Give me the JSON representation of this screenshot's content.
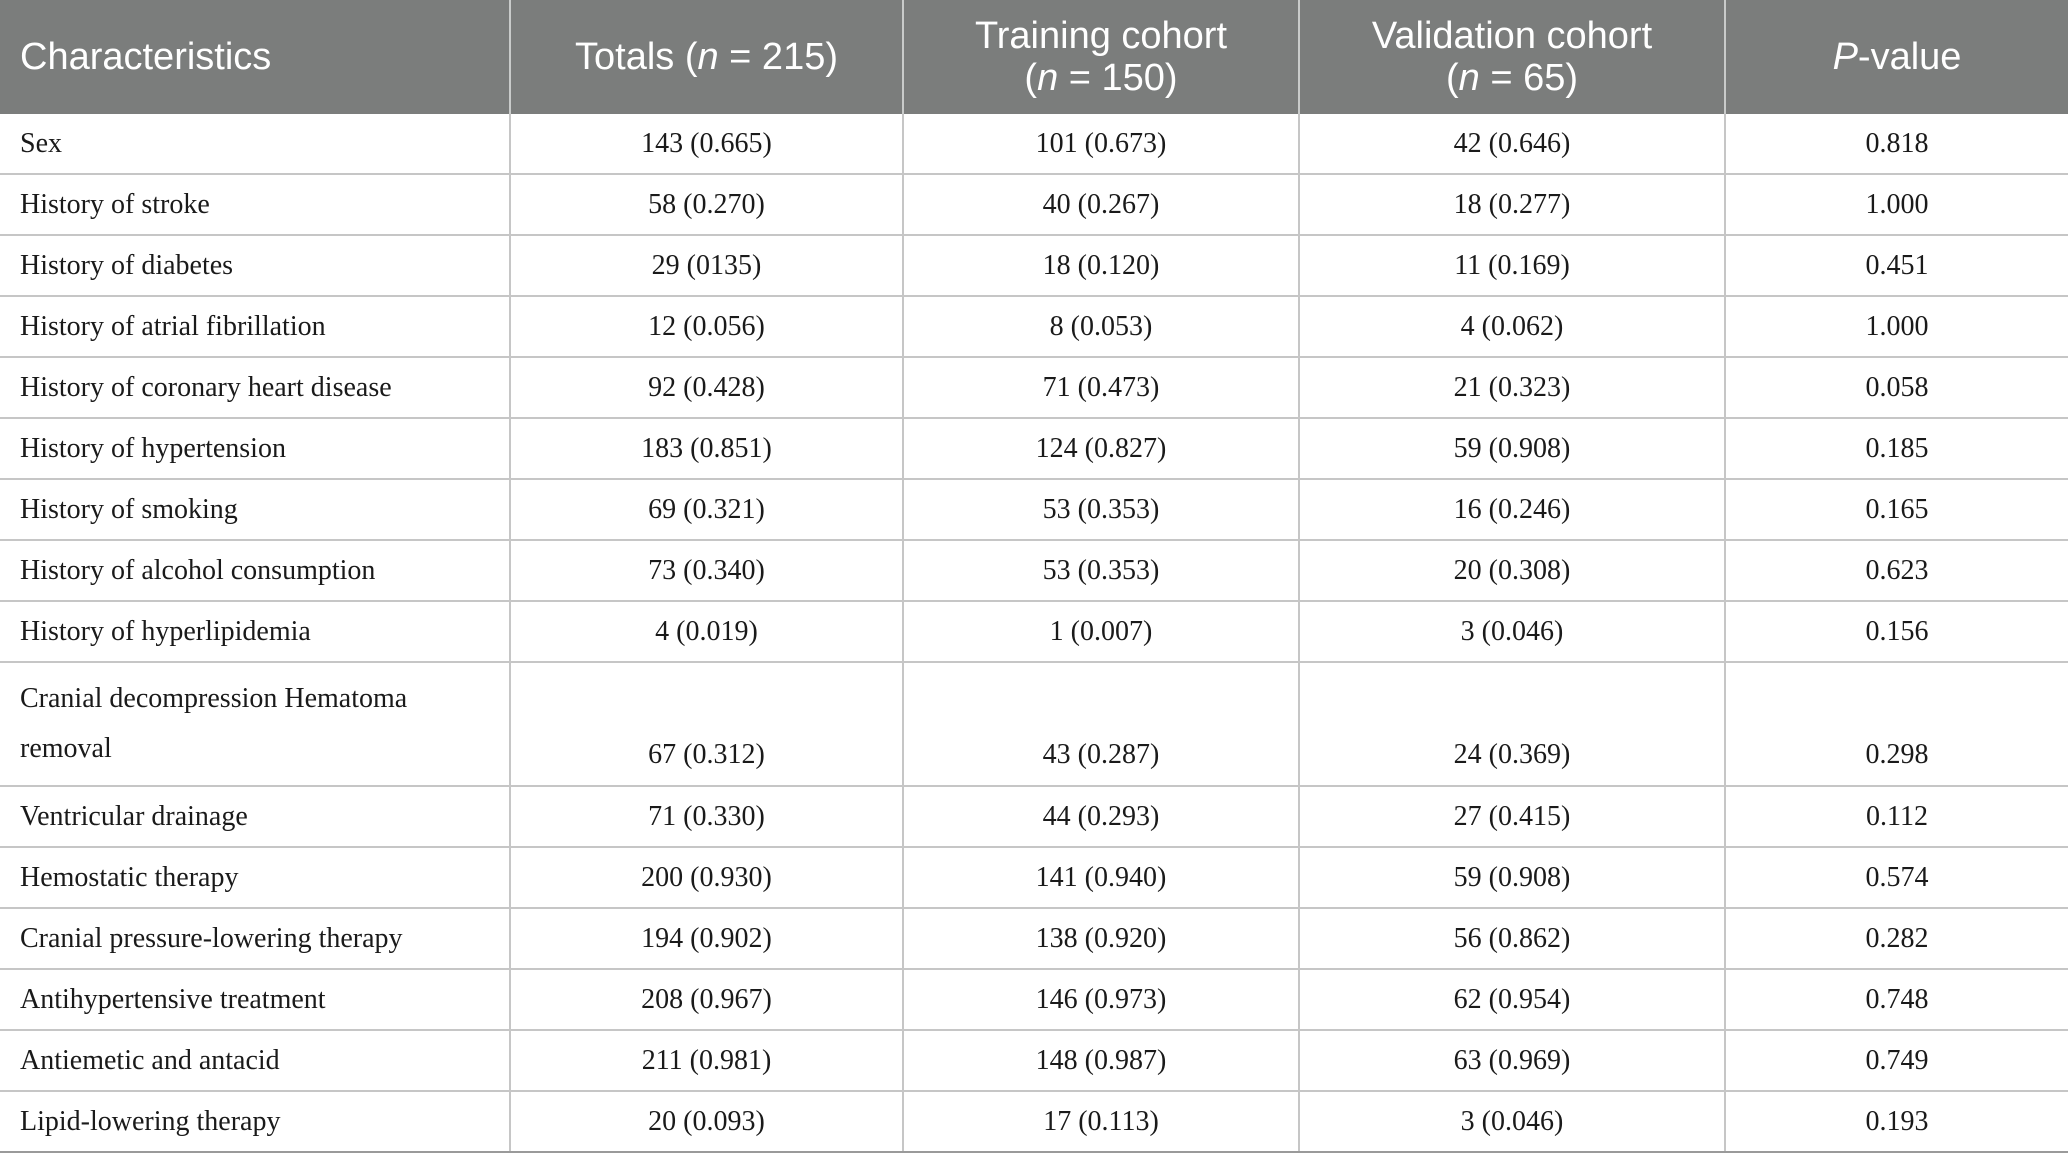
{
  "columns": [
    {
      "label": "Characteristics"
    },
    {
      "label_pre": "Totals (",
      "label_italic": "n",
      "label_post": " = 215)"
    },
    {
      "line1": "Training cohort",
      "label_pre": "(",
      "label_italic": "n",
      "label_post": " = 150)"
    },
    {
      "line1": "Validation cohort",
      "label_pre": "(",
      "label_italic": "n",
      "label_post": " = 65)"
    },
    {
      "label_italic": "P",
      "label_post": "-value"
    }
  ],
  "rows": [
    {
      "label": "Sex",
      "totals": "143 (0.665)",
      "training": "101 (0.673)",
      "validation": "42 (0.646)",
      "p": "0.818"
    },
    {
      "label": "History of stroke",
      "totals": "58 (0.270)",
      "training": "40 (0.267)",
      "validation": "18 (0.277)",
      "p": "1.000"
    },
    {
      "label": "History of diabetes",
      "totals": "29 (0135)",
      "training": "18 (0.120)",
      "validation": "11 (0.169)",
      "p": "0.451"
    },
    {
      "label": "History of atrial fibrillation",
      "totals": "12 (0.056)",
      "training": "8 (0.053)",
      "validation": "4 (0.062)",
      "p": "1.000"
    },
    {
      "label": "History of coronary heart disease",
      "totals": "92 (0.428)",
      "training": "71 (0.473)",
      "validation": "21 (0.323)",
      "p": "0.058"
    },
    {
      "label": "History of hypertension",
      "totals": "183 (0.851)",
      "training": "124 (0.827)",
      "validation": "59 (0.908)",
      "p": "0.185"
    },
    {
      "label": "History of smoking",
      "totals": "69 (0.321)",
      "training": "53 (0.353)",
      "validation": "16 (0.246)",
      "p": "0.165"
    },
    {
      "label": "History of alcohol consumption",
      "totals": "73 (0.340)",
      "training": "53 (0.353)",
      "validation": "20 (0.308)",
      "p": "0.623"
    },
    {
      "label": "History of hyperlipidemia",
      "totals": "4 (0.019)",
      "training": "1 (0.007)",
      "validation": "3 (0.046)",
      "p": "0.156"
    },
    {
      "label": "Cranial decompression Hematoma removal",
      "totals": "67 (0.312)",
      "training": "43 (0.287)",
      "validation": "24 (0.369)",
      "p": "0.298"
    },
    {
      "label": "Ventricular drainage",
      "totals": "71 (0.330)",
      "training": "44 (0.293)",
      "validation": "27 (0.415)",
      "p": "0.112"
    },
    {
      "label": "Hemostatic therapy",
      "totals": "200 (0.930)",
      "training": "141 (0.940)",
      "validation": "59 (0.908)",
      "p": "0.574"
    },
    {
      "label": "Cranial pressure-lowering therapy",
      "totals": "194 (0.902)",
      "training": "138 (0.920)",
      "validation": "56 (0.862)",
      "p": "0.282"
    },
    {
      "label": "Antihypertensive treatment",
      "totals": "208 (0.967)",
      "training": "146 (0.973)",
      "validation": "62 (0.954)",
      "p": "0.748"
    },
    {
      "label": "Antiemetic and antacid",
      "totals": "211 (0.981)",
      "training": "148 (0.987)",
      "validation": "63 (0.969)",
      "p": "0.749"
    },
    {
      "label": "Lipid-lowering therapy",
      "totals": "20 (0.093)",
      "training": "17 (0.113)",
      "validation": "3 (0.046)",
      "p": "0.193"
    }
  ]
}
